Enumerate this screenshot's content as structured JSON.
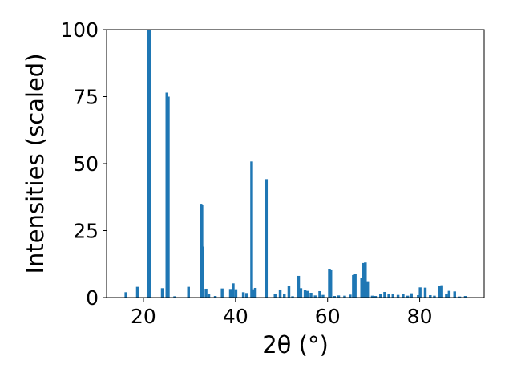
{
  "chart_data": {
    "type": "bar",
    "title": "",
    "xlabel": "2θ (°)",
    "ylabel": "Intensities (scaled)",
    "xlim": [
      12,
      94
    ],
    "ylim": [
      0,
      100
    ],
    "xticks": [
      20,
      40,
      60,
      80
    ],
    "yticks": [
      0,
      25,
      50,
      75,
      100
    ],
    "grid": false,
    "bar_color": "#1f77b4",
    "series": [
      {
        "x": [
          16.2,
          18.7,
          21.1,
          21.3,
          24.1,
          25.1,
          25.4,
          26.8,
          29.8,
          32.5,
          32.7,
          32.9,
          33.6,
          34.2,
          35.6,
          37.1,
          38.9,
          39.5,
          40.1,
          41.7,
          42.4,
          43.5,
          43.9,
          44.3,
          46.7,
          48.6,
          49.7,
          50.6,
          51.6,
          52.4,
          53.7,
          54.2,
          55.1,
          55.6,
          56.4,
          57.3,
          58.3,
          59.0,
          60.4,
          60.7,
          61.5,
          62.4,
          63.7,
          64.9,
          65.6,
          66.0,
          67.4,
          67.8,
          68.2,
          68.7,
          69.7,
          70.4,
          71.5,
          72.4,
          73.3,
          74.2,
          75.3,
          76.4,
          77.4,
          78.2,
          79.7,
          80.1,
          81.2,
          82.3,
          83.2,
          84.3,
          84.8,
          85.8,
          86.4,
          87.6,
          88.7,
          89.9
        ],
        "values": [
          2,
          4,
          100,
          100,
          3.5,
          76.5,
          75,
          0.5,
          4,
          35,
          34.5,
          19,
          3.3,
          1.2,
          0.6,
          3.4,
          3.2,
          5.3,
          3.1,
          2,
          1.7,
          50.8,
          3.1,
          3.6,
          44.2,
          1.2,
          3,
          1.5,
          4.2,
          0.5,
          8.1,
          3.5,
          2.8,
          2.5,
          1.8,
          0.8,
          2.4,
          1,
          10.5,
          10.2,
          0.6,
          0.8,
          0.7,
          1.1,
          8.4,
          8.7,
          7.4,
          12.9,
          13.1,
          6.1,
          0.7,
          0.6,
          1.3,
          2.1,
          1.2,
          1.4,
          1,
          1.3,
          0.7,
          1.6,
          0.9,
          3.8,
          3.7,
          0.9,
          0.7,
          4.3,
          4.6,
          1.2,
          2.5,
          2.3,
          0.4,
          0.6
        ]
      }
    ]
  }
}
